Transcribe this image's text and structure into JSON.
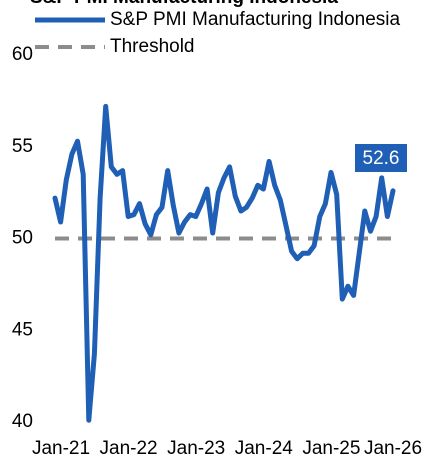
{
  "chart_data": {
    "type": "line",
    "title": "S&P PMI Manufacturing Indonesia",
    "categories": [
      "Jan-21",
      null,
      null,
      null,
      null,
      null,
      null,
      null,
      null,
      null,
      null,
      null,
      "Jan-22",
      null,
      null,
      null,
      null,
      null,
      null,
      null,
      null,
      null,
      null,
      null,
      "Jan-23",
      null,
      null,
      null,
      null,
      null,
      null,
      null,
      null,
      null,
      null,
      null,
      "Jan-24",
      null,
      null,
      null,
      null,
      null,
      null,
      null,
      null,
      null,
      null,
      null,
      "Jan-25",
      null,
      null,
      null,
      null,
      null,
      null,
      null,
      null,
      null,
      null,
      null,
      "Jan-26"
    ],
    "series": [
      {
        "name": "S&P PMI Manufacturing Indonesia",
        "color": "#1f5fb5",
        "values": [
          52.2,
          50.9,
          53.2,
          54.6,
          55.3,
          53.5,
          40.1,
          43.7,
          52.2,
          57.2,
          53.9,
          53.5,
          53.7,
          51.2,
          51.3,
          51.9,
          50.8,
          50.2,
          51.3,
          51.7,
          53.7,
          51.8,
          50.3,
          50.9,
          51.3,
          51.2,
          51.9,
          52.7,
          50.3,
          52.5,
          53.3,
          53.9,
          52.3,
          51.5,
          51.7,
          52.2,
          52.9,
          52.7,
          54.2,
          52.9,
          52.1,
          50.7,
          49.3,
          48.9,
          49.2,
          49.2,
          49.6,
          51.2,
          51.9,
          53.6,
          52.4,
          46.7,
          47.4,
          46.9,
          49.2,
          51.5,
          50.4,
          51.2,
          53.3,
          51.2,
          52.6
        ]
      },
      {
        "name": "Threshold",
        "color": "#8c8c8c",
        "dashed": true,
        "values": [
          50,
          50,
          50,
          50,
          50,
          50,
          50,
          50,
          50,
          50,
          50,
          50,
          50,
          50,
          50,
          50,
          50,
          50,
          50,
          50,
          50,
          50,
          50,
          50,
          50,
          50,
          50,
          50,
          50,
          50,
          50,
          50,
          50,
          50,
          50,
          50,
          50,
          50,
          50,
          50,
          50,
          50,
          50,
          50,
          50,
          50,
          50,
          50,
          50,
          50,
          50,
          50,
          50,
          50,
          50,
          50,
          50,
          50,
          50,
          50,
          50
        ]
      }
    ],
    "ylim": [
      40,
      60
    ],
    "yticks": [
      40,
      45,
      50,
      55,
      60
    ],
    "grid": false,
    "legend": "top"
  }
}
